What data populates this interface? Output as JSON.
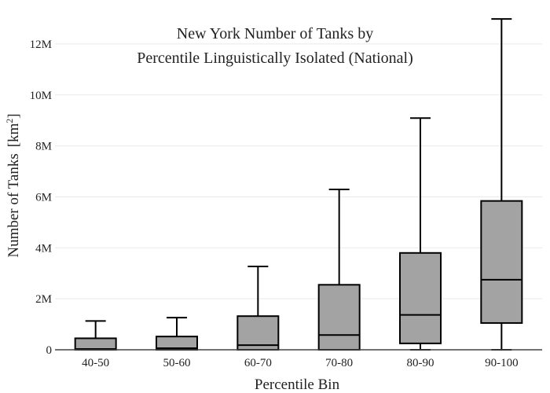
{
  "chart_data": {
    "type": "box",
    "title_lines": [
      "New York Number of Tanks by",
      "Percentile Linguistically Isolated (National)"
    ],
    "xlabel": "Percentile Bin",
    "ylabel": "Number of Tanks",
    "ylabel_unit": "[km",
    "ylabel_unit_sup": "2",
    "ylabel_unit_end": "]",
    "ylim": [
      0,
      13200000
    ],
    "yticks": [
      0,
      2000000,
      4000000,
      6000000,
      8000000,
      10000000,
      12000000
    ],
    "ytick_labels": [
      "0",
      "2M",
      "4M",
      "6M",
      "8M",
      "10M",
      "12M"
    ],
    "grid": true,
    "box_color": "#a3a3a3",
    "categories": [
      "40-50",
      "50-60",
      "60-70",
      "70-80",
      "80-90",
      "90-100"
    ],
    "boxes": [
      {
        "min": 0,
        "q1": 0,
        "median": 30000,
        "q3": 450000,
        "max": 1130000
      },
      {
        "min": 0,
        "q1": 0,
        "median": 60000,
        "q3": 520000,
        "max": 1260000
      },
      {
        "min": 0,
        "q1": 0,
        "median": 180000,
        "q3": 1320000,
        "max": 3270000
      },
      {
        "min": 0,
        "q1": 0,
        "median": 580000,
        "q3": 2550000,
        "max": 6290000
      },
      {
        "min": 0,
        "q1": 250000,
        "median": 1370000,
        "q3": 3800000,
        "max": 9090000
      },
      {
        "min": 0,
        "q1": 1050000,
        "median": 2750000,
        "q3": 5840000,
        "max": 12980000
      }
    ]
  }
}
